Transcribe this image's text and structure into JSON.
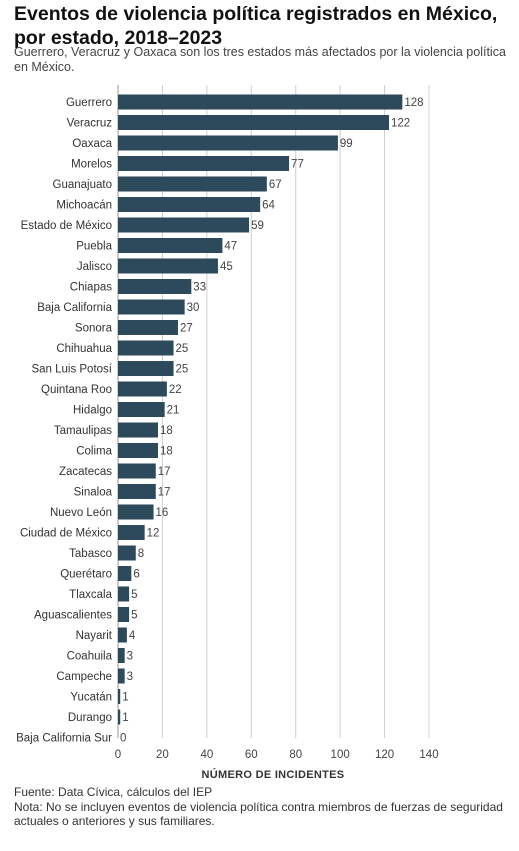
{
  "header": {
    "title": "Eventos de violencia política registrados en México, por estado, 2018–2023",
    "subtitle": "Guerrero, Veracruz y Oaxaca son los tres estados más afectados por la violencia política en México."
  },
  "chart_data": {
    "type": "bar",
    "orientation": "horizontal",
    "categories": [
      "Guerrero",
      "Veracruz",
      "Oaxaca",
      "Morelos",
      "Guanajuato",
      "Michoacán",
      "Estado de México",
      "Puebla",
      "Jalisco",
      "Chiapas",
      "Baja California",
      "Sonora",
      "Chihuahua",
      "San Luis Potosí",
      "Quintana Roo",
      "Hidalgo",
      "Tamaulipas",
      "Colima",
      "Zacatecas",
      "Sinaloa",
      "Nuevo León",
      "Ciudad de México",
      "Tabasco",
      "Querétaro",
      "Tlaxcala",
      "Aguascalientes",
      "Nayarit",
      "Coahuila",
      "Campeche",
      "Yucatán",
      "Durango",
      "Baja California Sur"
    ],
    "values": [
      128,
      122,
      99,
      77,
      67,
      64,
      59,
      47,
      45,
      33,
      30,
      27,
      25,
      25,
      22,
      21,
      18,
      18,
      17,
      17,
      16,
      12,
      8,
      6,
      5,
      5,
      4,
      3,
      3,
      1,
      1,
      0
    ],
    "xlabel": "NÚMERO DE INCIDENTES",
    "xlim": [
      0,
      140
    ],
    "xticks": [
      0,
      20,
      40,
      60,
      80,
      100,
      120,
      140
    ],
    "grid": true,
    "bar_color": "#2d4a5c"
  },
  "footer": {
    "source": "Fuente: Data Cívica, cálculos del IEP",
    "note": "Nota: No se incluyen eventos de violencia política contra miembros de fuerzas de seguridad actuales o anteriores y sus familiares."
  }
}
